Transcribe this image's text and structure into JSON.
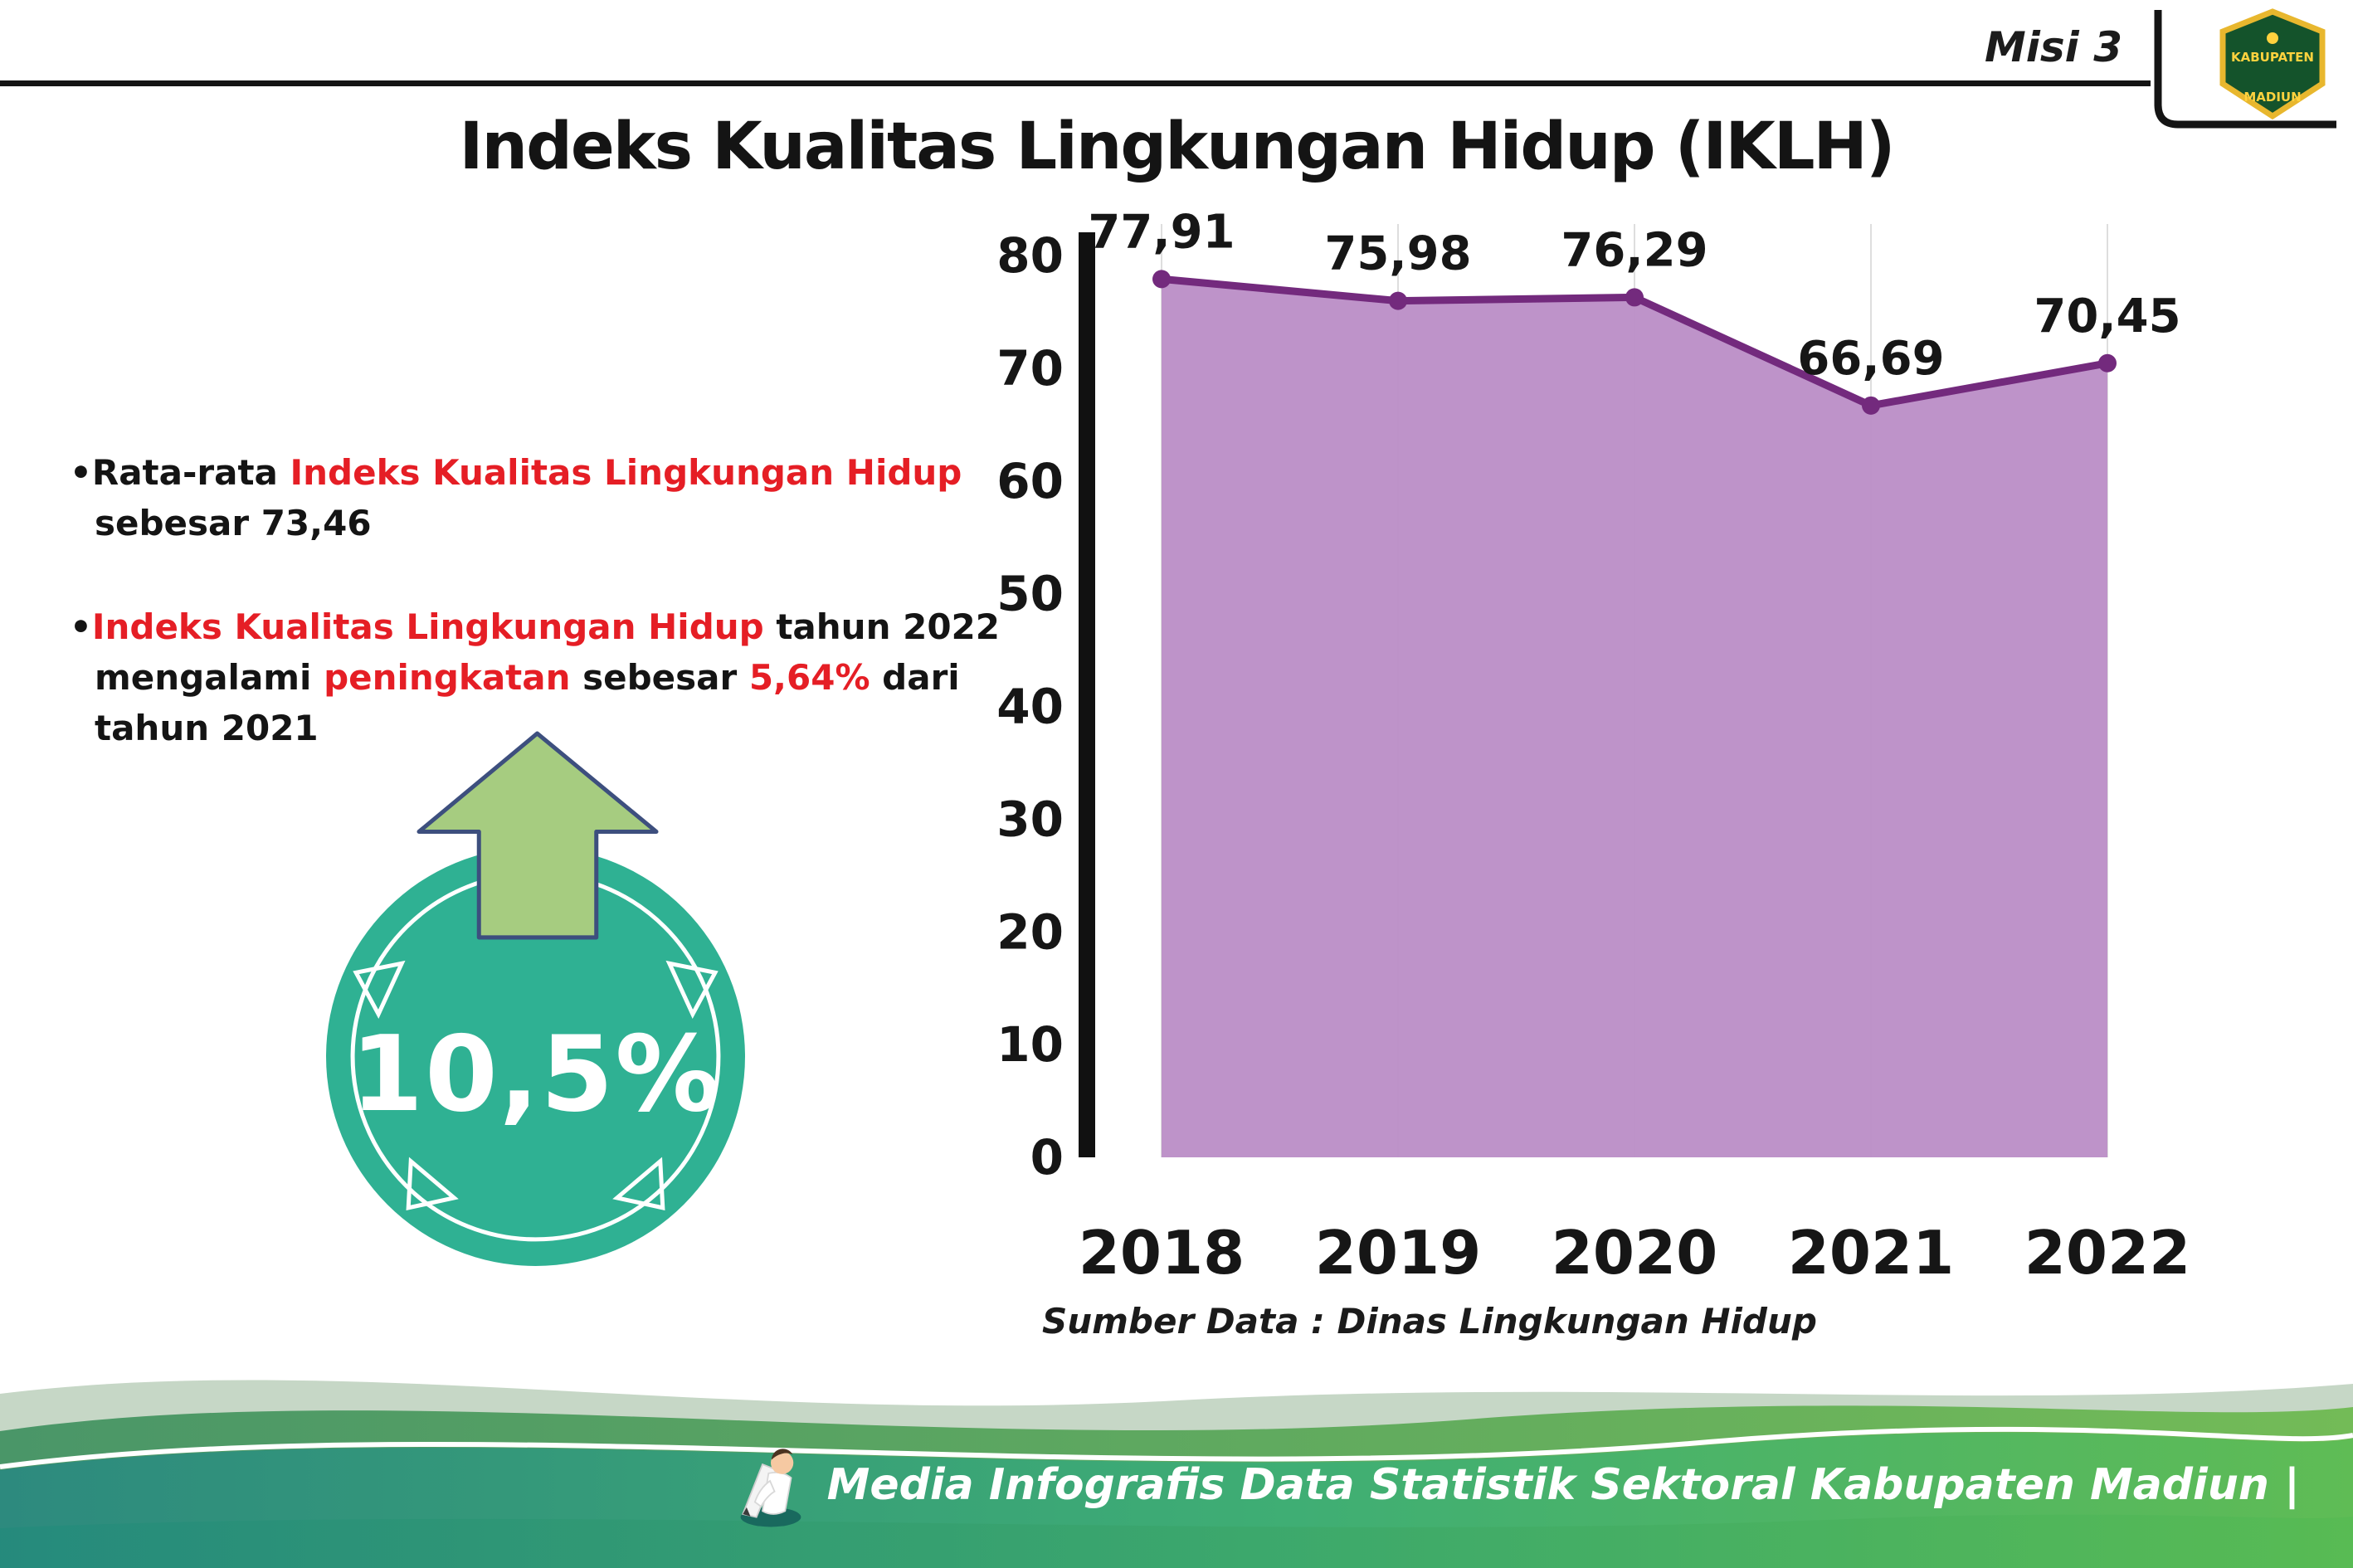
{
  "header": {
    "misi": "Misi 3",
    "title": "Indeks Kualitas Lingkungan Hidup (IKLH)"
  },
  "logo": {
    "name": "Lambang Kabupaten Madiun",
    "top_text": "KABUPATEN",
    "bottom_text": "MADIUN"
  },
  "bullets": {
    "marker": "•",
    "b1_pre": "Rata-rata ",
    "b1_red": "Indeks Kualitas Lingkungan Hidup",
    "b1_post": "sebesar 73,46",
    "b2_red1": "Indeks Kualitas Lingkungan Hidup",
    "b2_mid1": " tahun 2022 mengalami ",
    "b2_red2": "peningkatan",
    "b2_mid2": " sebesar ",
    "b2_red3": "5,64%",
    "b2_end": " dari tahun 2021"
  },
  "badge": {
    "value": "10,5%"
  },
  "chart_data": {
    "type": "area",
    "title": "Indeks Kualitas Lingkungan Hidup (IKLH)",
    "categories": [
      "2018",
      "2019",
      "2020",
      "2021",
      "2022"
    ],
    "values": [
      77.91,
      75.98,
      76.29,
      66.69,
      70.45
    ],
    "value_labels": [
      "77,91",
      "75,98",
      "76,29",
      "66,69",
      "70,45"
    ],
    "ylim": [
      0,
      80
    ],
    "yticks": [
      80,
      70,
      60,
      50,
      40,
      30,
      20,
      10,
      0
    ],
    "xlabel": "",
    "ylabel": "",
    "legend": "none",
    "grid": "faint vertical gridlines at each year",
    "source": "Sumber Data : Dinas Lingkungan Hidup",
    "area_fill": "#bb8dc6",
    "line_color": "#732a7d",
    "label_color": "#161616"
  },
  "footer": {
    "text": "Media Infografis Data Statistik Sektoral Kabupaten Madiun |"
  }
}
